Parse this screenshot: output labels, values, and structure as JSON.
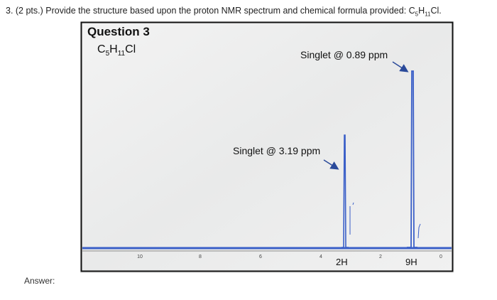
{
  "question": {
    "prefix": "3. (2 pts.) Provide the structure based upon the proton NMR spectrum and chemical formula provided: ",
    "formula": [
      "C",
      "5",
      "H",
      "11",
      "Cl."
    ]
  },
  "spectrum": {
    "title": "Question 3",
    "formula": [
      "C",
      "5",
      "H",
      "11",
      "Cl"
    ],
    "annotations": [
      "Singlet @ 0.89 ppm",
      "Singlet @ 3.19 ppm"
    ],
    "integrations": [
      "2H",
      "9H"
    ],
    "axis_ticks": [
      "10",
      "8",
      "6",
      "4",
      "2",
      "0"
    ]
  },
  "answer_label": "Answer:"
}
